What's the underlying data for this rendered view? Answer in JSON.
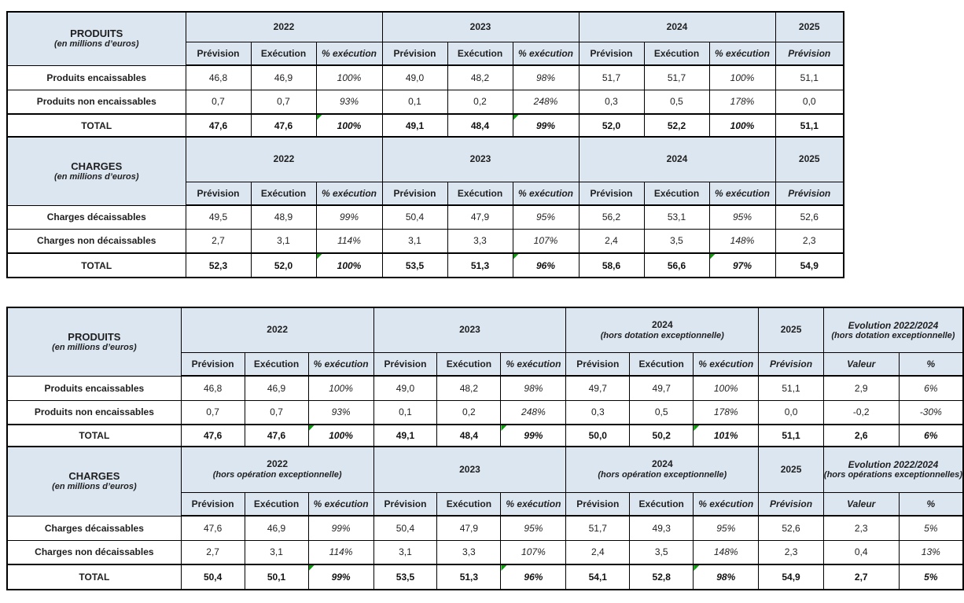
{
  "palette": {
    "header_bg": "#DCE6F1",
    "border": "#000000",
    "text": "#1F1F1F",
    "value_text": "#333333",
    "triangle_green": "#089E08",
    "page_bg": "#FFFFFF"
  },
  "labels": {
    "prevision": "Prévision",
    "execution": "Exécution",
    "pct_execution": "% exécution",
    "valeur": "Valeur",
    "pct": "%"
  },
  "tables": [
    {
      "name": "table-synthese-globale",
      "blocks": [
        {
          "title": "PRODUITS",
          "subtitle": "(en millions d’euros)",
          "groups": [
            {
              "year": "2022"
            },
            {
              "year": "2023"
            },
            {
              "year": "2024"
            },
            {
              "year": "2025",
              "single": true
            }
          ],
          "rows": [
            {
              "label": "Produits encaissables",
              "cells": [
                "46,8",
                "46,9",
                "100%",
                "49,0",
                "48,2",
                "98%",
                "51,7",
                "51,7",
                "100%",
                "51,1"
              ]
            },
            {
              "label": "Produits non encaissables",
              "cells": [
                "0,7",
                "0,7",
                "93%",
                "0,1",
                "0,2",
                "248%",
                "0,3",
                "0,5",
                "178%",
                "0,0"
              ]
            }
          ],
          "total": {
            "label": "TOTAL",
            "cells": [
              "47,6",
              "47,6",
              "100%",
              "49,1",
              "48,4",
              "99%",
              "52,0",
              "52,2",
              "100%",
              "51,1"
            ],
            "triangles": [
              2,
              5
            ]
          }
        },
        {
          "title": "CHARGES",
          "subtitle": "(en millions d’euros)",
          "groups": [
            {
              "year": "2022"
            },
            {
              "year": "2023"
            },
            {
              "year": "2024"
            },
            {
              "year": "2025",
              "single": true
            }
          ],
          "rows": [
            {
              "label": "Charges décaissables",
              "cells": [
                "49,5",
                "48,9",
                "99%",
                "50,4",
                "47,9",
                "95%",
                "56,2",
                "53,1",
                "95%",
                "52,6"
              ]
            },
            {
              "label": "Charges non décaissables",
              "cells": [
                "2,7",
                "3,1",
                "114%",
                "3,1",
                "3,3",
                "107%",
                "2,4",
                "3,5",
                "148%",
                "2,3"
              ]
            }
          ],
          "total": {
            "label": "TOTAL",
            "cells": [
              "52,3",
              "52,0",
              "100%",
              "53,5",
              "51,3",
              "96%",
              "58,6",
              "56,6",
              "97%",
              "54,9"
            ],
            "triangles": [
              2,
              5,
              8
            ]
          }
        }
      ]
    },
    {
      "name": "table-hors-exceptionnel",
      "blocks": [
        {
          "title": "PRODUITS",
          "subtitle": "(en millions d’euros)",
          "groups": [
            {
              "year": "2022"
            },
            {
              "year": "2023"
            },
            {
              "year": "2024",
              "note": "(hors dotation exceptionnelle)"
            },
            {
              "year": "2025",
              "single": true
            },
            {
              "evo": true,
              "title": "Evolution 2022/2024",
              "note": "(hors dotation exceptionnelle)"
            }
          ],
          "rows": [
            {
              "label": "Produits encaissables",
              "cells": [
                "46,8",
                "46,9",
                "100%",
                "49,0",
                "48,2",
                "98%",
                "49,7",
                "49,7",
                "100%",
                "51,1",
                "2,9",
                "6%"
              ]
            },
            {
              "label": "Produits non encaissables",
              "cells": [
                "0,7",
                "0,7",
                "93%",
                "0,1",
                "0,2",
                "248%",
                "0,3",
                "0,5",
                "178%",
                "0,0",
                "-0,2",
                "-30%"
              ]
            }
          ],
          "total": {
            "label": "TOTAL",
            "cells": [
              "47,6",
              "47,6",
              "100%",
              "49,1",
              "48,4",
              "99%",
              "50,0",
              "50,2",
              "101%",
              "51,1",
              "2,6",
              "6%"
            ],
            "triangles": [
              2,
              5,
              8
            ]
          }
        },
        {
          "title": "CHARGES",
          "subtitle": "(en millions d’euros)",
          "groups": [
            {
              "year": "2022",
              "note": "(hors opération exceptionnelle)"
            },
            {
              "year": "2023"
            },
            {
              "year": "2024",
              "note": "(hors opération exceptionnelle)"
            },
            {
              "year": "2025",
              "single": true
            },
            {
              "evo": true,
              "title": "Evolution 2022/2024",
              "note": "(hors opérations exceptionnelles)"
            }
          ],
          "rows": [
            {
              "label": "Charges décaissables",
              "cells": [
                "47,6",
                "46,9",
                "99%",
                "50,4",
                "47,9",
                "95%",
                "51,7",
                "49,3",
                "95%",
                "52,6",
                "2,3",
                "5%"
              ]
            },
            {
              "label": "Charges non décaissables",
              "cells": [
                "2,7",
                "3,1",
                "114%",
                "3,1",
                "3,3",
                "107%",
                "2,4",
                "3,5",
                "148%",
                "2,3",
                "0,4",
                "13%"
              ]
            }
          ],
          "total": {
            "label": "TOTAL",
            "cells": [
              "50,4",
              "50,1",
              "99%",
              "53,5",
              "51,3",
              "96%",
              "54,1",
              "52,8",
              "98%",
              "54,9",
              "2,7",
              "5%"
            ],
            "triangles": [
              2,
              5,
              8
            ]
          }
        }
      ]
    }
  ]
}
